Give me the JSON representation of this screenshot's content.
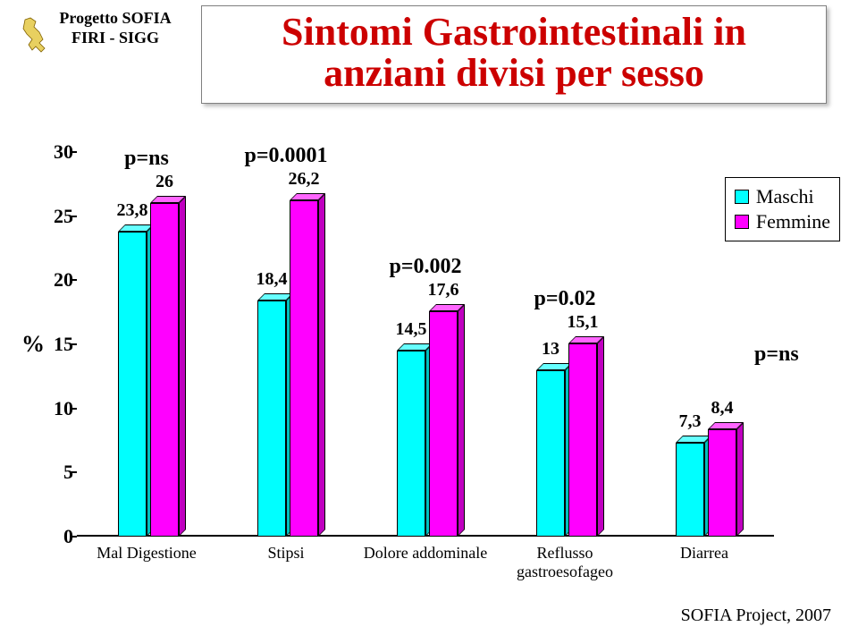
{
  "logo": {
    "line1": "Progetto SOFIA",
    "line2": "FIRI - SIGG"
  },
  "title": {
    "line1": "Sintomi Gastrointestinali in",
    "line2": "anziani divisi per sesso"
  },
  "chart": {
    "type": "bar",
    "ymax": 30,
    "ytick_step": 5,
    "yticks": [
      "0",
      "5",
      "10",
      "15",
      "20",
      "25",
      "30"
    ],
    "pct_symbol": "%",
    "colors": {
      "maschi_front": "#00ffff",
      "maschi_top": "#66ffff",
      "maschi_side": "#00c0c0",
      "femmine_front": "#ff00ff",
      "femmine_top": "#ff66ff",
      "femmine_side": "#c000c0",
      "baseline": "#000000",
      "swatch_m": "#00ffff",
      "swatch_f": "#ff00ff"
    },
    "legend": {
      "m": "Maschi",
      "f": "Femmine"
    },
    "categories": [
      {
        "label": "Mal Digestione",
        "m": 23.8,
        "f": 26,
        "pval": "p=ns"
      },
      {
        "label": "Stipsi",
        "m": 18.4,
        "f": 26.2,
        "pval": "p=0.0001"
      },
      {
        "label": "Dolore addominale",
        "m": 14.5,
        "f": 17.6,
        "pval": "p=0.002"
      },
      {
        "label": "Reflusso\ngastroesofageo",
        "m": 13,
        "f": 15.1,
        "pval": "p=0.02"
      },
      {
        "label": "Diarrea",
        "m": 7.3,
        "f": 8.4,
        "pval": "p=ns"
      }
    ],
    "value_labels": {
      "c0m": "23,8",
      "c0f": "26",
      "c1m": "18,4",
      "c1f": "26,2",
      "c2m": "14,5",
      "c2f": "17,6",
      "c3m": "13",
      "c3f": "15,1",
      "c4m": "7,3",
      "c4f": "8,4"
    },
    "xlabels": {
      "c0": "Mal Digestione",
      "c1": "Stipsi",
      "c2": "Dolore addominale",
      "c3a": "Reflusso",
      "c3b": "gastroesofageo",
      "c4": "Diarrea"
    },
    "pvals": {
      "c0": "p=ns",
      "c1": "p=0.0001",
      "c2": "p=0.002",
      "c3": "p=0.02",
      "c4": "p=ns"
    }
  },
  "footer": "SOFIA Project, 2007"
}
